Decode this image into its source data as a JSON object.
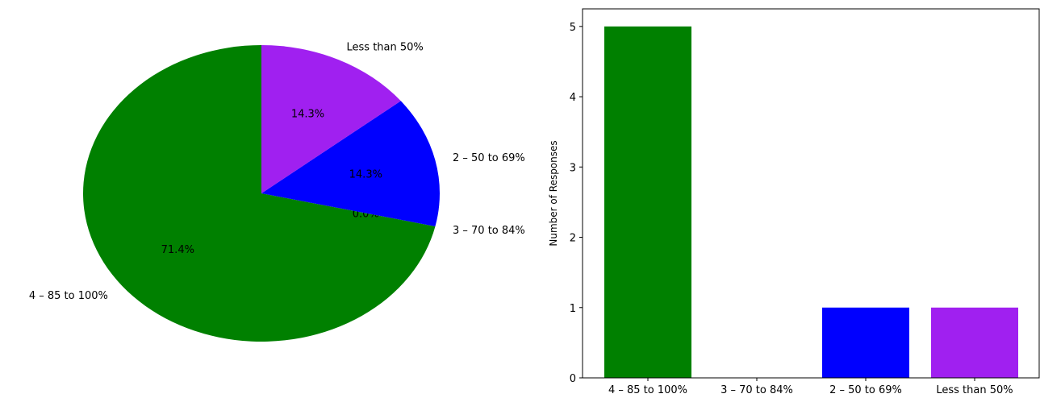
{
  "chart_data": [
    {
      "type": "pie",
      "categories": [
        "4 – 85 to 100%",
        "3 – 70 to 84%",
        "2 – 50 to 69%",
        "Less than 50%"
      ],
      "values": [
        5,
        0,
        1,
        1
      ],
      "percent_labels": [
        "71.4%",
        "0.0%",
        "14.3%",
        "14.3%"
      ],
      "colors": [
        "#008000",
        "#ff8c00",
        "#0000ff",
        "#a020f0"
      ],
      "title": ""
    },
    {
      "type": "bar",
      "categories": [
        "4 – 85 to 100%",
        "3 – 70 to 84%",
        "2 – 50 to 69%",
        "Less than 50%"
      ],
      "values": [
        5,
        0,
        1,
        1
      ],
      "colors": [
        "#008000",
        "#ff8c00",
        "#0000ff",
        "#a020f0"
      ],
      "title": "",
      "xlabel": "",
      "ylabel": "Number of Responses",
      "ylim": [
        0,
        5.25
      ],
      "yticks": [
        0,
        1,
        2,
        3,
        4,
        5
      ],
      "grid": false
    }
  ]
}
